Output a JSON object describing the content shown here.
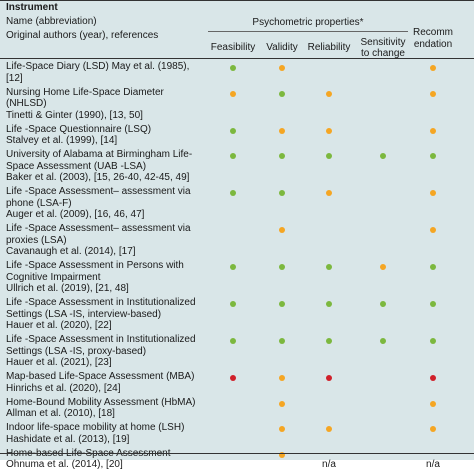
{
  "header": {
    "instrument_label": "Instrument",
    "name_label": "Name (abbreviation)",
    "authors_label": "Original authors (year), references",
    "psychometric_label": "Psychometric properties*",
    "columns": [
      {
        "key": "feasibility",
        "label_lines": [
          "Feasibility"
        ]
      },
      {
        "key": "validity",
        "label_lines": [
          "Validity"
        ]
      },
      {
        "key": "reliability",
        "label_lines": [
          "Reliability"
        ]
      },
      {
        "key": "sensitivity",
        "label_lines": [
          "Sensitivity",
          "to change"
        ]
      }
    ],
    "recommendation_lines": [
      "Recomm",
      "endation"
    ]
  },
  "colors": {
    "green": "#7cb83e",
    "orange": "#f5a623",
    "red": "#d0202a",
    "panel": "#d9e6e8"
  },
  "rows": [
    {
      "lines": [
        "Life-Space Diary (LSD) May et al. (1985),",
        "[12]"
      ],
      "ratings": {
        "feasibility": "green",
        "validity": "orange",
        "reliability": "",
        "sensitivity": "",
        "recommendation": "orange"
      }
    },
    {
      "lines": [
        "Nursing Home Life-Space Diameter",
        "(NHLSD)",
        "Tinetti & Ginter (1990), [13, 50]"
      ],
      "ratings": {
        "feasibility": "orange",
        "validity": "green",
        "reliability": "orange",
        "sensitivity": "",
        "recommendation": "orange"
      }
    },
    {
      "lines": [
        "Life -Space Questionnaire (LSQ)",
        "Stalvey et al. (1999), [14]"
      ],
      "ratings": {
        "feasibility": "green",
        "validity": "orange",
        "reliability": "orange",
        "sensitivity": "",
        "recommendation": "orange"
      }
    },
    {
      "lines": [
        "University of Alabama at Birmingham Life-",
        "Space Assessment (UAB -LSA)",
        "Baker et al. (2003), [15, 26-40, 42-45, 49]"
      ],
      "ratings": {
        "feasibility": "green",
        "validity": "green",
        "reliability": "green",
        "sensitivity": "green",
        "recommendation": "green"
      }
    },
    {
      "lines": [
        "Life -Space Assessment– assessment via",
        "phone (LSA-F)",
        "Auger et al. (2009), [16, 46, 47]"
      ],
      "ratings": {
        "feasibility": "green",
        "validity": "green",
        "reliability": "orange",
        "sensitivity": "",
        "recommendation": "orange"
      }
    },
    {
      "lines": [
        "Life -Space Assessment– assessment via",
        "proxies (LSA)",
        "Cavanaugh et al. (2014), [17]"
      ],
      "ratings": {
        "feasibility": "",
        "validity": "orange",
        "reliability": "",
        "sensitivity": "",
        "recommendation": "orange"
      }
    },
    {
      "lines": [
        "Life -Space Assessment in Persons with",
        "Cognitive Impairment",
        "Ullrich et al. (2019), [21, 48]"
      ],
      "ratings": {
        "feasibility": "green",
        "validity": "green",
        "reliability": "green",
        "sensitivity": "orange",
        "recommendation": "green"
      }
    },
    {
      "lines": [
        "Life -Space Assessment in Institutionalized",
        "Settings (LSA -IS, interview-based)",
        "Hauer et al. (2020), [22]"
      ],
      "ratings": {
        "feasibility": "green",
        "validity": "green",
        "reliability": "green",
        "sensitivity": "green",
        "recommendation": "green"
      }
    },
    {
      "lines": [
        "Life -Space Assessment in Institutionalized",
        "Settings (LSA -IS, proxy-based)",
        "Hauer et al. (2021), [23]"
      ],
      "ratings": {
        "feasibility": "green",
        "validity": "green",
        "reliability": "green",
        "sensitivity": "green",
        "recommendation": "green"
      }
    },
    {
      "lines": [
        "Map-based Life-Space Assessment (MBA)",
        "Hinrichs et al. (2020), [24]"
      ],
      "ratings": {
        "feasibility": "red",
        "validity": "orange",
        "reliability": "red",
        "sensitivity": "",
        "recommendation": "red"
      }
    },
    {
      "lines": [
        "Home-Bound Mobility Assessment (HbMA)",
        "Allman et al. (2010), [18]"
      ],
      "ratings": {
        "feasibility": "",
        "validity": "orange",
        "reliability": "",
        "sensitivity": "",
        "recommendation": "orange"
      }
    },
    {
      "lines": [
        "Indoor life-space mobility at home (LSH)",
        "Hashidate et al. (2013), [19]"
      ],
      "ratings": {
        "feasibility": "",
        "validity": "orange",
        "reliability": "orange",
        "sensitivity": "",
        "recommendation": "orange"
      }
    },
    {
      "lines": [
        "Home-based Life-Space Assessment",
        "Ohnuma et al. (2014), [20]"
      ],
      "ratings": {
        "feasibility": "",
        "validity": "orange",
        "reliability": "n/a",
        "sensitivity": "",
        "recommendation": "n/a"
      }
    }
  ]
}
